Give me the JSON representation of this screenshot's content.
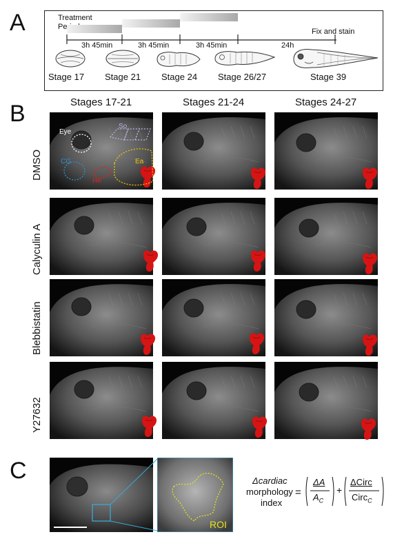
{
  "panels": {
    "A": "A",
    "B": "B",
    "C": "C"
  },
  "panel_a": {
    "treatment_label_line1": "Treatment",
    "treatment_label_line2": "Periods",
    "intervals": [
      "3h 45min",
      "3h 45min",
      "3h 45min",
      "24h"
    ],
    "fix_label": "Fix and stain",
    "stages": [
      "Stage 17",
      "Stage 21",
      "Stage 24",
      "Stage 26/27",
      "Stage 39"
    ]
  },
  "panel_b": {
    "columns": [
      "Stages 17-21",
      "Stages 21-24",
      "Stages 24-27"
    ],
    "rows": [
      "DMSO",
      "Calyculin A",
      "Blebbistatin",
      "Y27632"
    ],
    "annotations": {
      "eye": "Eye",
      "so": "So",
      "cg": "CG",
      "he": "He",
      "ea": "Ea"
    },
    "colors": {
      "eye": "#ffffff",
      "so": "#b9b3e6",
      "cg": "#2e8fd1",
      "he": "#e0201f",
      "ea": "#f2c200",
      "heart": "#d61414"
    }
  },
  "panel_c": {
    "roi_label": "ROI",
    "roi_color": "#e6e21a",
    "inset_box_color": "#38a8d8",
    "formula": {
      "lhs_line1": "Δcardiac",
      "lhs_line2": "morphology",
      "lhs_line3": "index",
      "equals": "=",
      "plus": "+",
      "term1_num": "ΔA",
      "term1_den": "A",
      "term1_den_sub": "C",
      "term2_num": "ΔCirc",
      "term2_den": "Circ",
      "term2_den_sub": "C"
    }
  }
}
